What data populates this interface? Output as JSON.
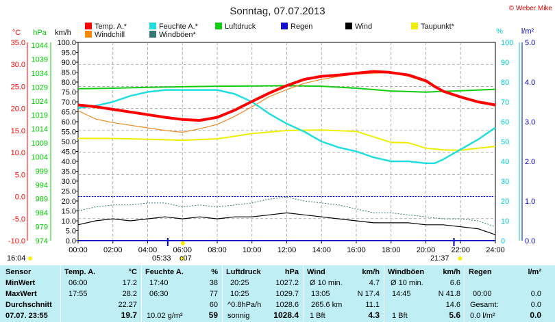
{
  "chart_data": {
    "type": "line",
    "title": "Sonntag, 07.07.2013",
    "credit": "© Weber Mike",
    "x_ticks": [
      "00:00",
      "02:00",
      "04:00",
      "06:00",
      "08:00",
      "10:00",
      "12:00",
      "14:00",
      "16:00",
      "18:00",
      "20:00",
      "22:00",
      "24:00"
    ],
    "xlim": [
      0,
      24
    ],
    "grid": true,
    "axes": {
      "temp_c": {
        "label": "°C",
        "color": "#ff0000",
        "range": [
          -10,
          35
        ],
        "ticks": [
          "35.0",
          "30.0",
          "25.0",
          "20.0",
          "15.0",
          "10.0",
          "5.0",
          "0.0",
          "-5.0",
          "-10.0"
        ]
      },
      "pressure_hpa": {
        "label": "hPa",
        "color": "#00cc00",
        "range": [
          974,
          1045
        ],
        "ticks": [
          "1044",
          "1039",
          "1034",
          "1029",
          "1024",
          "1019",
          "1014",
          "1009",
          "1004",
          "999",
          "994",
          "989",
          "984",
          "979",
          "974"
        ]
      },
      "speed_kmh": {
        "label": "km/h",
        "color": "#000000",
        "range": [
          0,
          100
        ],
        "ticks": [
          "100.0",
          "95.0",
          "90.0",
          "85.0",
          "80.0",
          "75.0",
          "70.0",
          "65.0",
          "60.0",
          "55.0",
          "50.0",
          "45.0",
          "40.0",
          "35.0",
          "30.0",
          "25.0",
          "20.0",
          "15.0",
          "10.0",
          "5.0",
          "0.0"
        ]
      },
      "humidity_pct": {
        "label": "%",
        "color": "#00cccc",
        "range": [
          0,
          100
        ],
        "ticks": [
          "100",
          "90",
          "80",
          "70",
          "60",
          "50",
          "40",
          "30",
          "20",
          "10",
          "0"
        ]
      },
      "rain_lm2": {
        "label": "l/m²",
        "color": "#0000cc",
        "range": [
          0,
          5
        ],
        "ticks": [
          "5.0",
          "4.0",
          "3.0",
          "2.0",
          "1.0",
          "0.0"
        ]
      }
    },
    "legend": [
      {
        "name": "Temp. A.*",
        "color": "#ff0000"
      },
      {
        "name": "Feuchte A.*",
        "color": "#22dddd"
      },
      {
        "name": "Luftdruck",
        "color": "#11cc11"
      },
      {
        "name": "Regen",
        "color": "#1111cc"
      },
      {
        "name": "Wind",
        "color": "#000000"
      },
      {
        "name": "Taupunkt*",
        "color": "#eeee00"
      },
      {
        "name": "Windchill",
        "color": "#ff8800"
      },
      {
        "name": "Windböen*",
        "color": "#337777"
      }
    ],
    "series": [
      {
        "name": "Temp. A.*",
        "axis": "temp_c",
        "color": "#ff0000",
        "x": [
          0,
          1,
          2,
          3,
          4,
          5,
          6,
          7,
          8,
          9,
          10,
          11,
          12,
          13,
          14,
          15,
          16,
          17,
          17.9,
          19,
          20,
          20.5,
          21,
          22,
          23,
          24
        ],
        "values": [
          20.8,
          20.4,
          19.8,
          19.2,
          18.6,
          18.0,
          17.5,
          17.3,
          18.0,
          19.6,
          21.6,
          23.5,
          25.2,
          26.6,
          27.3,
          27.6,
          28.0,
          28.4,
          28.2,
          27.6,
          26.3,
          25.0,
          23.9,
          22.6,
          21.5,
          20.8
        ]
      },
      {
        "name": "Windchill",
        "axis": "temp_c",
        "color": "#ee8822",
        "x": [
          0,
          1,
          2,
          3,
          4,
          5,
          6,
          7,
          8,
          9,
          10,
          11,
          12,
          13,
          14,
          15,
          16,
          17,
          18,
          19,
          20,
          21,
          22,
          23,
          24
        ],
        "values": [
          19.5,
          17.6,
          16.8,
          16.2,
          15.6,
          15.0,
          14.6,
          15.4,
          16.4,
          18.2,
          20.4,
          22.7,
          24.3,
          25.7,
          26.6,
          27.3,
          27.8,
          28.0,
          28.1,
          27.3,
          26.0,
          24.0,
          22.5,
          21.5,
          20.5
        ]
      },
      {
        "name": "Feuchte A.*",
        "axis": "humidity_pct",
        "color": "#22dddd",
        "x": [
          0,
          1,
          2,
          3,
          4,
          5,
          6,
          7,
          8,
          9,
          10,
          11,
          12,
          13,
          14,
          15,
          16,
          17,
          18,
          19,
          20,
          20.5,
          21,
          22,
          23,
          24
        ],
        "values": [
          67,
          68,
          70,
          73,
          75,
          76,
          76,
          76,
          76,
          74,
          70,
          64,
          59,
          55,
          50,
          47,
          45,
          42,
          40,
          40,
          39,
          39,
          41,
          46,
          51,
          57
        ]
      },
      {
        "name": "Luftdruck",
        "axis": "pressure_hpa",
        "color": "#11cc11",
        "x": [
          0,
          2,
          4,
          6,
          8,
          10,
          12,
          14,
          16,
          18,
          20,
          22,
          24
        ],
        "values": [
          1028.4,
          1028.6,
          1028.9,
          1029.1,
          1029.3,
          1029.4,
          1029.5,
          1029.3,
          1028.6,
          1027.6,
          1027.2,
          1027.7,
          1028.2
        ]
      },
      {
        "name": "Taupunkt*",
        "axis": "temp_c",
        "color": "#eeee00",
        "x": [
          0,
          2,
          4,
          6,
          8,
          10,
          12,
          14,
          16,
          18,
          19,
          20,
          21,
          22,
          23,
          24
        ],
        "values": [
          13.2,
          13.2,
          13.0,
          12.8,
          13.1,
          14.3,
          15.0,
          15.1,
          14.8,
          12.3,
          12.2,
          11.0,
          10.6,
          10.5,
          11.0,
          11.4
        ]
      },
      {
        "name": "Wind",
        "axis": "speed_kmh",
        "color": "#000000",
        "x": [
          0,
          1,
          2,
          3,
          4,
          5,
          6,
          7,
          8,
          9,
          10,
          11,
          12,
          13,
          14,
          15,
          16,
          17,
          18,
          19,
          20,
          21,
          22,
          23,
          24
        ],
        "values": [
          8,
          10,
          11,
          10,
          11,
          12,
          11,
          12,
          11,
          12,
          12,
          13,
          14,
          13,
          12,
          11,
          10,
          9,
          9,
          9,
          8,
          8,
          7,
          6,
          3
        ]
      },
      {
        "name": "Windböen*",
        "axis": "speed_kmh",
        "color": "#337777",
        "x": [
          0,
          1,
          2,
          3,
          4,
          5,
          6,
          7,
          8,
          9,
          10,
          11,
          12,
          13,
          14,
          15,
          16,
          17,
          18,
          19,
          20,
          21,
          22,
          23,
          24
        ],
        "values": [
          15,
          17,
          18,
          18,
          19,
          19,
          17,
          18,
          17,
          18,
          19,
          21,
          22,
          20,
          19,
          18,
          16,
          14,
          14,
          13,
          12,
          11,
          11,
          10,
          7
        ]
      },
      {
        "name": "Regen",
        "axis": "rain_lm2",
        "color": "#1111cc",
        "x": [
          0,
          24
        ],
        "values": [
          0,
          0
        ]
      }
    ],
    "dotted_reference_line": {
      "axis": "temp_c",
      "value": 0.0,
      "color": "#0000cc"
    },
    "sunrise": "05:33",
    "sunset": "21:37",
    "moon": "c07"
  },
  "sun_labels": {
    "rise_left": "16:04",
    "rise": "05:33",
    "moon": "c07",
    "set": "21:37"
  },
  "table": {
    "header": {
      "sensor": "Sensor",
      "temp": "Temp. A.",
      "temp_unit": "°C",
      "hum": "Feuchte A.",
      "hum_unit": "%",
      "press": "Luftdruck",
      "press_unit": "hPa",
      "wind": "Wind",
      "wind_unit": "km/h",
      "gust": "Windböen",
      "gust_unit": "km/h",
      "rain": "Regen",
      "rain_unit": "l/m²"
    },
    "rows": [
      {
        "label": "MinWert",
        "temp_time": "06:00",
        "temp_val": "17.2",
        "hum_time": "17:40",
        "hum_val": "38",
        "press_time": "20:25",
        "press_val": "1027.2",
        "wind_a": "Ø 10 min.",
        "wind_val": "4.7",
        "gust_a": "Ø 10 min.",
        "gust_val": "6.6",
        "rain_a": "",
        "rain_val": ""
      },
      {
        "label": "MaxWert",
        "temp_time": "17:55",
        "temp_val": "28.2",
        "hum_time": "06:30",
        "hum_val": "77",
        "press_time": "10:25",
        "press_val": "1029.7",
        "wind_a": "13:05",
        "wind_val": "N 17.4",
        "gust_a": "14:45",
        "gust_val": "N 41.8",
        "rain_a": "00:00",
        "rain_val": "0.0"
      },
      {
        "label": "Durchschnitt",
        "temp_time": "",
        "temp_val": "22.27",
        "hum_time": "",
        "hum_val": "60",
        "press_time": "^0.8hPa/h",
        "press_val": "1028.6",
        "wind_a": "265.6 km",
        "wind_val": "11.1",
        "gust_a": "",
        "gust_val": "14.6",
        "rain_a": "Gesamt:",
        "rain_val": "0.0"
      },
      {
        "label": "07.07.  23:55",
        "temp_time": "",
        "temp_val": "19.7",
        "hum_time": "10.02 g/m³",
        "hum_val": "59",
        "press_time": "sonnig",
        "press_val": "1028.4",
        "wind_a": "1 Bft",
        "wind_val": "4.3",
        "gust_a": "1 Bft",
        "gust_val": "5.6",
        "rain_a": "0.0 l/m²",
        "rain_val": "0.0"
      }
    ]
  }
}
